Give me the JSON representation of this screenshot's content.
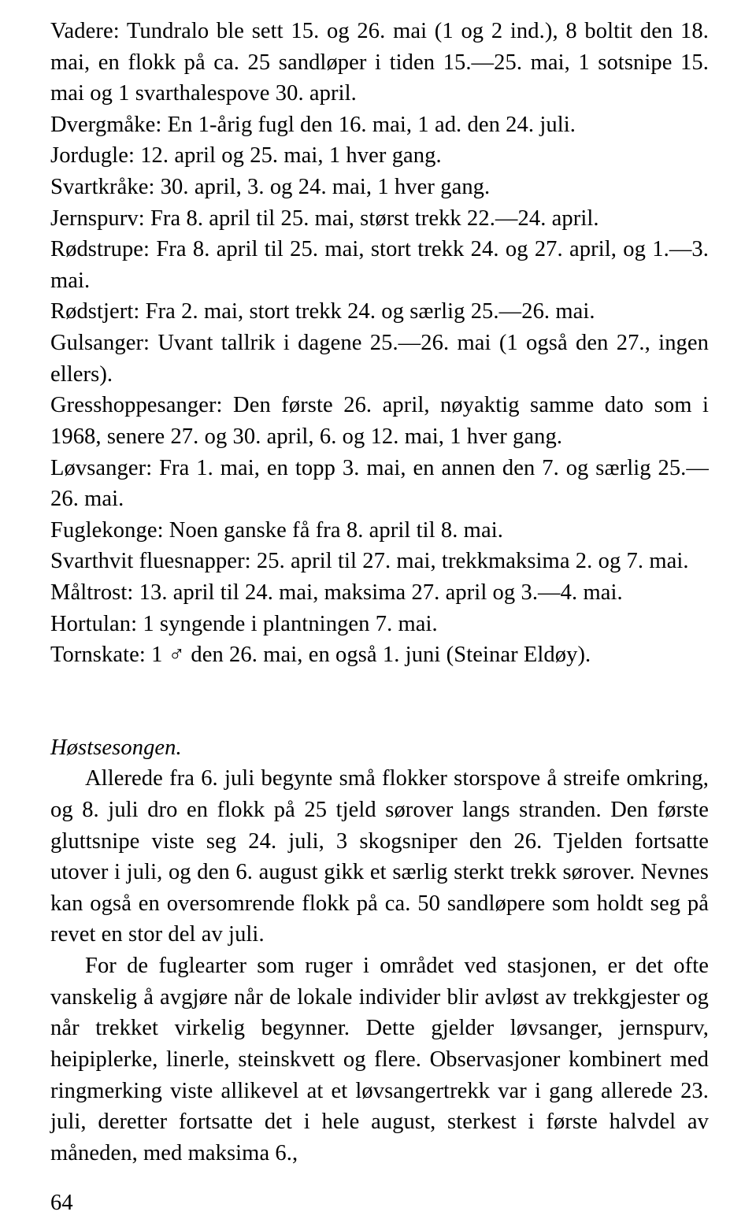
{
  "p_species": "Vadere: Tundralo ble sett 15. og 26. mai (1 og 2 ind.), 8 boltit den 18. mai, en flokk på ca. 25 sandløper i tiden 15.—25. mai, 1 sotsnipe 15. mai og 1 svarthalespove 30. april.\nDvergmåke: En 1-årig fugl den 16. mai, 1 ad. den 24. juli.\nJordugle: 12. april og 25. mai, 1 hver gang.\nSvartkråke: 30. april, 3. og 24. mai, 1 hver gang.\nJernspurv: Fra 8. april til 25. mai, størst trekk 22.—24. april.\nRødstrupe: Fra 8. april til 25. mai, stort trekk 24. og 27. april, og 1.—3. mai.\nRødstjert: Fra 2. mai, stort trekk 24. og særlig 25.—26. mai.\nGulsanger: Uvant tallrik i dagene 25.—26. mai (1 også den 27., ingen ellers).\nGresshoppesanger: Den første 26. april, nøyaktig samme dato som i 1968, senere 27. og 30. april, 6. og 12. mai, 1 hver gang.\nLøvsanger: Fra 1. mai, en topp 3. mai, en annen den 7. og særlig 25.—26. mai.\nFuglekonge: Noen ganske få fra 8. april til 8. mai.\nSvarthvit fluesnapper: 25. april til 27. mai, trekkmaksima 2. og 7. mai.\nMåltrost: 13. april til 24. mai, maksima 27. april og 3.—4. mai.\nHortulan: 1 syngende i plantningen 7. mai.\nTornskate: 1 ♂ den 26. mai, en også 1. juni (Steinar Eldøy).",
  "host_heading": "Høstsesongen.",
  "host_p1": "Allerede fra 6. juli begynte små flokker storspove å streife omkring, og 8. juli dro en flokk på 25 tjeld sørover langs stranden. Den første gluttsnipe viste seg 24. juli, 3 skogsniper den 26. Tjelden fortsatte utover i juli, og den 6. august gikk et særlig sterkt trekk sørover. Nevnes kan også en oversomrende flokk på ca. 50 sandløpere som holdt seg på revet en stor del av juli.",
  "host_p2": "For de fuglearter som ruger i området ved stasjonen, er det ofte vanskelig å avgjøre når de lokale individer blir avløst av trekkgjester og når trekket virkelig begynner. Dette gjelder løvsanger, jernspurv, heipiplerke, linerle, steinskvett og flere. Observasjoner kombinert med ringmerking viste allikevel at et løvsangertrekk var i gang allerede 23. juli, deretter fortsatte det i hele august, sterkest i første halvdel av måneden, med maksima 6.,",
  "page_num": "64"
}
